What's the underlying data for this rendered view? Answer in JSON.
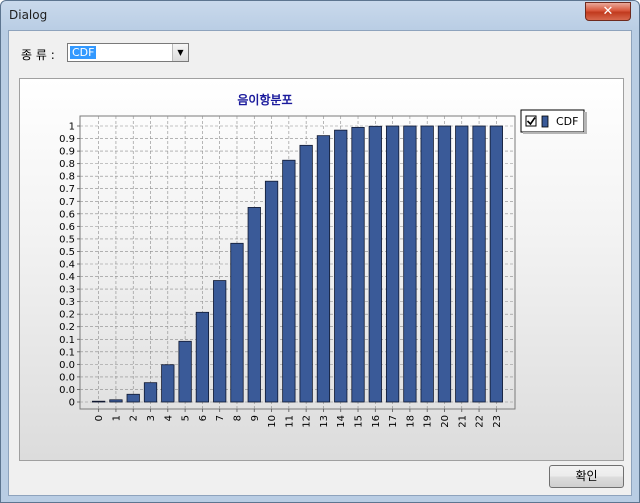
{
  "window": {
    "title": "Dialog",
    "close_glyph": "✕"
  },
  "type_selector": {
    "label": "종 류 :",
    "value": "CDF"
  },
  "ok_button": {
    "label": "확인"
  },
  "colors": {
    "bar": "#3a5a98",
    "title": "#1a1a9c",
    "grid": "#8a8a8a"
  },
  "chart_data": {
    "type": "bar",
    "title": "음이항분포",
    "categories": [
      "0",
      "1",
      "2",
      "3",
      "4",
      "5",
      "6",
      "7",
      "8",
      "9",
      "10",
      "11",
      "12",
      "13",
      "14",
      "15",
      "16",
      "17",
      "18",
      "19",
      "20",
      "21",
      "22",
      "23"
    ],
    "series": [
      {
        "name": "CDF",
        "values": [
          0.0,
          0.008,
          0.028,
          0.07,
          0.135,
          0.22,
          0.325,
          0.44,
          0.575,
          0.705,
          0.8,
          0.876,
          0.93,
          0.965,
          0.985,
          0.995,
          0.999,
          1.0,
          1.0,
          1.0,
          1.0,
          1.0,
          1.0,
          1.0
        ]
      }
    ],
    "ytick_labels": [
      "0",
      "0.0",
      "0.0",
      "0.0",
      "0.1",
      "0.1",
      "0.2",
      "0.2",
      "0.3",
      "0.3",
      "0.4",
      "0.4",
      "0.5",
      "0.5",
      "0.6",
      "0.6",
      "0.7",
      "0.7",
      "0.8",
      "0.8",
      "0.9",
      "0.9",
      "1"
    ],
    "ylim": [
      0,
      1
    ],
    "grid": true,
    "legend": {
      "position": "top-right",
      "checked": true
    }
  }
}
